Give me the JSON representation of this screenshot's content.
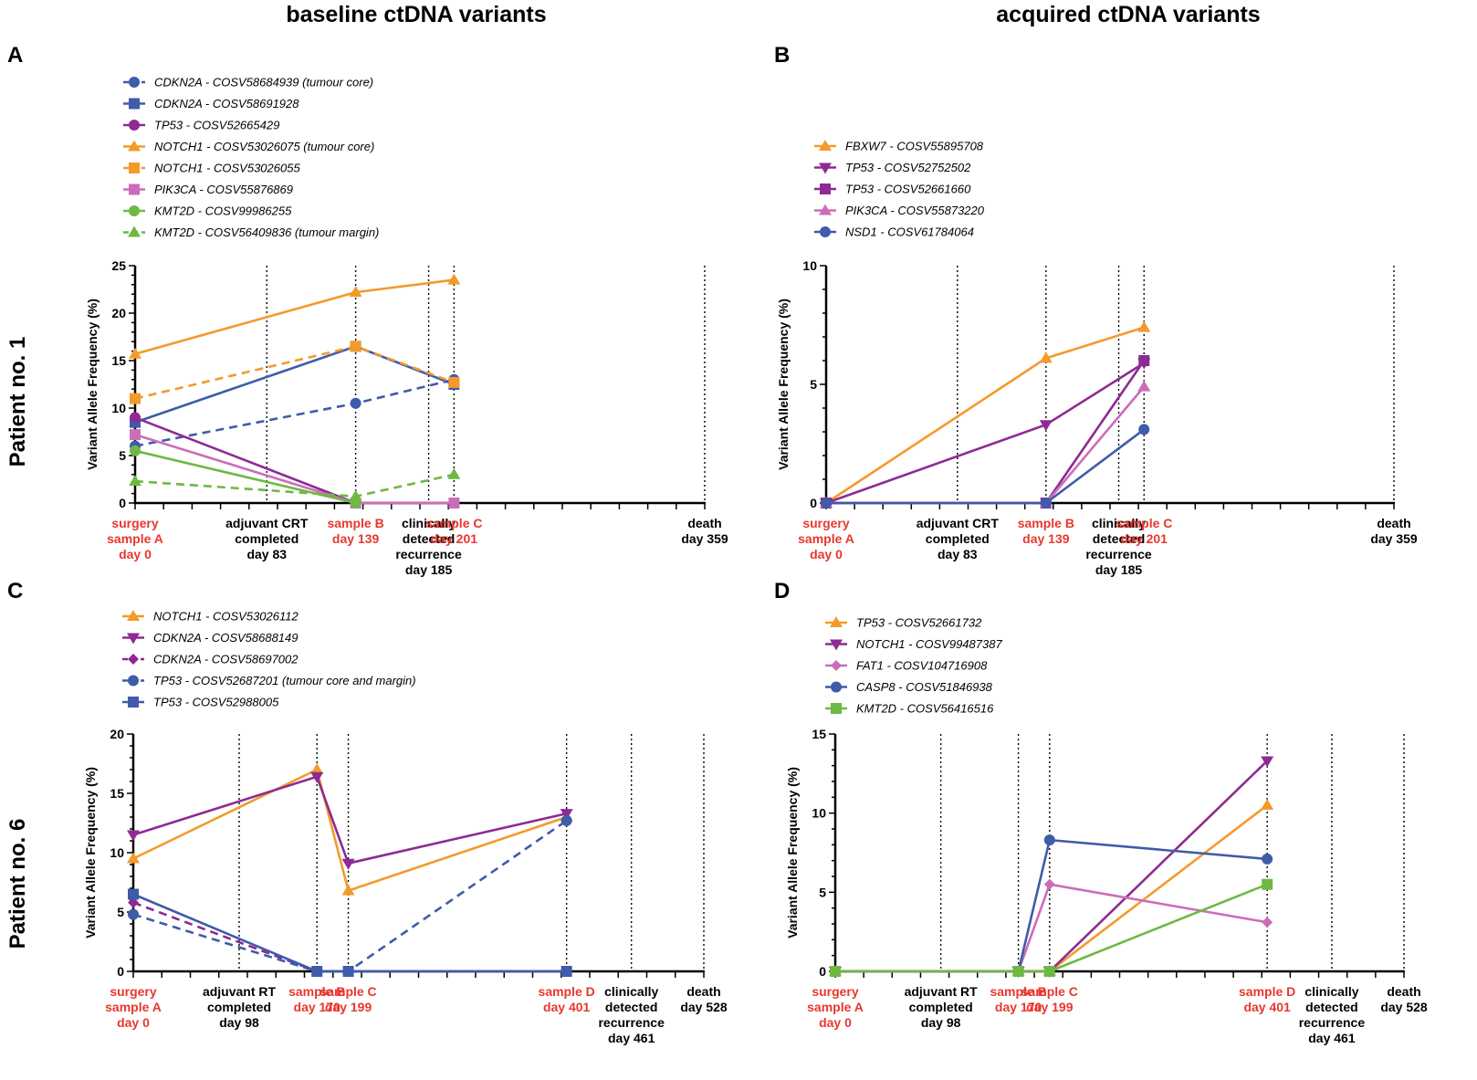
{
  "figure": {
    "col_titles": [
      "baseline ctDNA variants",
      "acquired ctDNA variants"
    ],
    "row_titles": [
      "Patient no. 1",
      "Patient no. 6"
    ]
  },
  "colors": {
    "orange": "#F39A2B",
    "purple": "#8E2A93",
    "blue": "#3F5BAA",
    "pink": "#CC6DB9",
    "green": "#6DB944",
    "event_red": "#E8372E"
  },
  "chart_data": [
    {
      "panel": "A",
      "type": "line",
      "xlabel": "",
      "ylabel": "Variant Allele Frequency (%)",
      "ylim": [
        0,
        25
      ],
      "yticks": [
        0,
        5,
        10,
        15,
        20,
        25
      ],
      "xlim": [
        0,
        359
      ],
      "events": [
        {
          "day": 0,
          "label": [
            "surgery",
            "sample A",
            "day 0"
          ],
          "sample": true
        },
        {
          "day": 83,
          "label": [
            "adjuvant CRT",
            "completed",
            "day 83"
          ],
          "sample": false
        },
        {
          "day": 139,
          "label": [
            "sample B",
            "day 139"
          ],
          "sample": true
        },
        {
          "day": 185,
          "label": [
            "clinically",
            "detected",
            "recurrence",
            "day 185"
          ],
          "sample": false
        },
        {
          "day": 201,
          "label": [
            "sample C",
            "day 201"
          ],
          "sample": true
        },
        {
          "day": 359,
          "label": [
            "death",
            "day 359"
          ],
          "sample": false
        }
      ],
      "series": [
        {
          "gene": "CDKN2A",
          "id": " - COSV58684939 (tumour core)",
          "color": "blue",
          "marker": "circle",
          "dash": true,
          "x": [
            0,
            139,
            201
          ],
          "y": [
            6,
            10.5,
            13
          ]
        },
        {
          "gene": "CDKN2A",
          "id": " - COSV58691928",
          "color": "blue",
          "marker": "square",
          "dash": false,
          "x": [
            0,
            139,
            201
          ],
          "y": [
            8.5,
            16.5,
            12.5
          ]
        },
        {
          "gene": "TP53",
          "id": " - COSV52665429",
          "color": "purple",
          "marker": "circle",
          "dash": false,
          "x": [
            0,
            139,
            201
          ],
          "y": [
            9,
            0,
            0
          ]
        },
        {
          "gene": "NOTCH1",
          "id": " - COSV53026075 (tumour core)",
          "color": "orange",
          "marker": "triangle",
          "dash": false,
          "x": [
            0,
            139,
            201
          ],
          "y": [
            15.7,
            22.2,
            23.5
          ]
        },
        {
          "gene": "NOTCH1",
          "id": " - COSV53026055",
          "color": "orange",
          "marker": "square",
          "dash": true,
          "x": [
            0,
            139,
            201
          ],
          "y": [
            11,
            16.5,
            12.7
          ]
        },
        {
          "gene": "PIK3CA",
          "id": " - COSV55876869",
          "color": "pink",
          "marker": "square",
          "dash": false,
          "x": [
            0,
            139,
            201
          ],
          "y": [
            7.2,
            0,
            0
          ]
        },
        {
          "gene": "KMT2D",
          "id": " - COSV99986255",
          "color": "green",
          "marker": "circle",
          "dash": false,
          "x": [
            0,
            139
          ],
          "y": [
            5.5,
            0
          ]
        },
        {
          "gene": "KMT2D",
          "id": " - COSV56409836 (tumour margin)",
          "color": "green",
          "marker": "triangle",
          "dash": true,
          "x": [
            0,
            139,
            201
          ],
          "y": [
            2.3,
            0.7,
            3
          ]
        }
      ]
    },
    {
      "panel": "B",
      "type": "line",
      "xlabel": "",
      "ylabel": "Variant Allele Frequency (%)",
      "ylim": [
        0,
        10
      ],
      "yticks": [
        0,
        5,
        10
      ],
      "xlim": [
        0,
        359
      ],
      "events": [
        {
          "day": 0,
          "label": [
            "surgery",
            "sample A",
            "day 0"
          ],
          "sample": true
        },
        {
          "day": 83,
          "label": [
            "adjuvant CRT",
            "completed",
            "day 83"
          ],
          "sample": false
        },
        {
          "day": 139,
          "label": [
            "sample B",
            "day 139"
          ],
          "sample": true
        },
        {
          "day": 185,
          "label": [
            "clinically",
            "detected",
            "recurrence",
            "day 185"
          ],
          "sample": false
        },
        {
          "day": 201,
          "label": [
            "sample C",
            "day 201"
          ],
          "sample": true
        },
        {
          "day": 359,
          "label": [
            "death",
            "day 359"
          ],
          "sample": false
        }
      ],
      "series": [
        {
          "gene": "FBXW7",
          "id": " - COSV55895708",
          "color": "orange",
          "marker": "triangle",
          "dash": false,
          "x": [
            0,
            139,
            201
          ],
          "y": [
            0,
            6.1,
            7.4
          ]
        },
        {
          "gene": "TP53",
          "id": " - COSV52752502",
          "color": "purple",
          "marker": "triangle-down",
          "dash": false,
          "x": [
            0,
            139,
            201
          ],
          "y": [
            0,
            3.3,
            5.9
          ]
        },
        {
          "gene": "TP53",
          "id": " - COSV52661660",
          "color": "purple",
          "marker": "square",
          "dash": false,
          "x": [
            0,
            139,
            201
          ],
          "y": [
            0,
            0,
            6
          ]
        },
        {
          "gene": "PIK3CA",
          "id": " - COSV55873220",
          "color": "pink",
          "marker": "triangle",
          "dash": false,
          "x": [
            0,
            139,
            201
          ],
          "y": [
            0,
            0,
            4.9
          ]
        },
        {
          "gene": "NSD1",
          "id": " - COSV61784064",
          "color": "blue",
          "marker": "circle",
          "dash": false,
          "x": [
            0,
            139,
            201
          ],
          "y": [
            0,
            0,
            3.1
          ]
        }
      ]
    },
    {
      "panel": "C",
      "type": "line",
      "xlabel": "",
      "ylabel": "Variant Allele Frequency (%)",
      "ylim": [
        0,
        20
      ],
      "yticks": [
        0,
        5,
        10,
        15,
        20
      ],
      "xlim": [
        0,
        528
      ],
      "events": [
        {
          "day": 0,
          "label": [
            "surgery",
            "sample A",
            "day 0"
          ],
          "sample": true
        },
        {
          "day": 98,
          "label": [
            "adjuvant RT",
            "completed",
            "day 98"
          ],
          "sample": false
        },
        {
          "day": 170,
          "label": [
            "sample B",
            "day 170"
          ],
          "sample": true
        },
        {
          "day": 199,
          "label": [
            "sample C",
            "day 199"
          ],
          "sample": true
        },
        {
          "day": 401,
          "label": [
            "sample D",
            "day 401"
          ],
          "sample": true
        },
        {
          "day": 461,
          "label": [
            "clinically",
            "detected",
            "recurrence",
            "day 461"
          ],
          "sample": false
        },
        {
          "day": 528,
          "label": [
            "death",
            "day 528"
          ],
          "sample": false
        }
      ],
      "series": [
        {
          "gene": "NOTCH1",
          "id": " - COSV53026112",
          "color": "orange",
          "marker": "triangle",
          "dash": false,
          "x": [
            0,
            170,
            199,
            401
          ],
          "y": [
            9.5,
            17,
            6.8,
            13
          ]
        },
        {
          "gene": "CDKN2A",
          "id": " - COSV58688149",
          "color": "purple",
          "marker": "triangle-down",
          "dash": false,
          "x": [
            0,
            170,
            199,
            401
          ],
          "y": [
            11.5,
            16.4,
            9.1,
            13.3
          ]
        },
        {
          "gene": "CDKN2A",
          "id": " - COSV58697002",
          "color": "purple",
          "marker": "diamond",
          "dash": true,
          "x": [
            0,
            170,
            199,
            401
          ],
          "y": [
            5.8,
            0,
            0,
            0
          ]
        },
        {
          "gene": "TP53",
          "id": " - COSV52687201 (tumour core and margin)",
          "color": "blue",
          "marker": "circle",
          "dash": true,
          "x": [
            0,
            170,
            199,
            401
          ],
          "y": [
            4.8,
            0,
            0,
            12.7
          ]
        },
        {
          "gene": "TP53",
          "id": " - COSV52988005",
          "color": "blue",
          "marker": "square",
          "dash": false,
          "x": [
            0,
            170,
            199,
            401
          ],
          "y": [
            6.5,
            0,
            0,
            0
          ]
        }
      ]
    },
    {
      "panel": "D",
      "type": "line",
      "xlabel": "",
      "ylabel": "Variant Allele Frequency (%)",
      "ylim": [
        0,
        15
      ],
      "yticks": [
        0,
        5,
        10,
        15
      ],
      "xlim": [
        0,
        528
      ],
      "events": [
        {
          "day": 0,
          "label": [
            "surgery",
            "sample A",
            "day 0"
          ],
          "sample": true
        },
        {
          "day": 98,
          "label": [
            "adjuvant RT",
            "completed",
            "day 98"
          ],
          "sample": false
        },
        {
          "day": 170,
          "label": [
            "sample B",
            "day 170"
          ],
          "sample": true
        },
        {
          "day": 199,
          "label": [
            "sample C",
            "day 199"
          ],
          "sample": true
        },
        {
          "day": 401,
          "label": [
            "sample D",
            "day 401"
          ],
          "sample": true
        },
        {
          "day": 461,
          "label": [
            "clinically",
            "detected",
            "recurrence",
            "day 461"
          ],
          "sample": false
        },
        {
          "day": 528,
          "label": [
            "death",
            "day 528"
          ],
          "sample": false
        }
      ],
      "series": [
        {
          "gene": "TP53",
          "id": " - COSV52661732",
          "color": "orange",
          "marker": "triangle",
          "dash": false,
          "x": [
            0,
            170,
            199,
            401
          ],
          "y": [
            0,
            0,
            0,
            10.5
          ]
        },
        {
          "gene": "NOTCH1",
          "id": " - COSV99487387",
          "color": "purple",
          "marker": "triangle-down",
          "dash": false,
          "x": [
            0,
            170,
            199,
            401
          ],
          "y": [
            0,
            0,
            0,
            13.3
          ]
        },
        {
          "gene": "FAT1",
          "id": " - COSV104716908",
          "color": "pink",
          "marker": "diamond",
          "dash": false,
          "x": [
            0,
            170,
            199,
            401
          ],
          "y": [
            0,
            0,
            5.5,
            3.1
          ]
        },
        {
          "gene": "CASP8",
          "id": " - COSV51846938",
          "color": "blue",
          "marker": "circle",
          "dash": false,
          "x": [
            0,
            170,
            199,
            401
          ],
          "y": [
            0,
            0,
            8.3,
            7.1
          ]
        },
        {
          "gene": "KMT2D",
          "id": " - COSV56416516",
          "color": "green",
          "marker": "square",
          "dash": false,
          "x": [
            0,
            170,
            199,
            401
          ],
          "y": [
            0,
            0,
            0,
            5.5
          ]
        }
      ]
    }
  ]
}
